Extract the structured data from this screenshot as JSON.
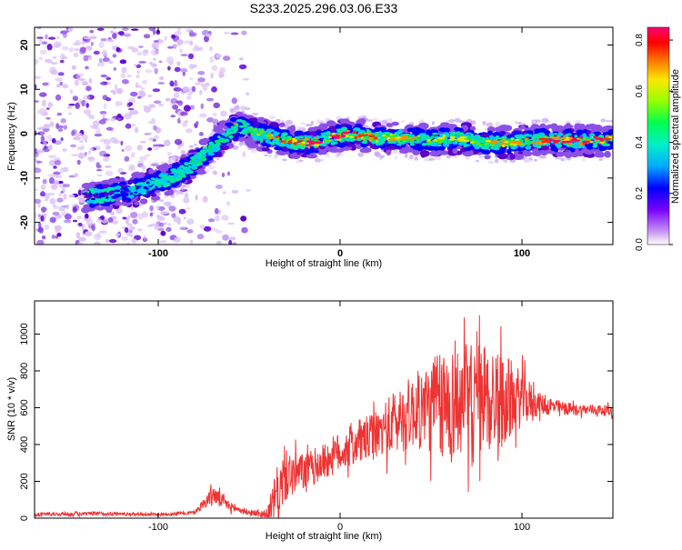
{
  "figure": {
    "title": "S233.2025.296.03.06.E33"
  },
  "chart_data": [
    {
      "type": "heatmap",
      "title": "S233.2025.296.03.06.E33",
      "xlabel": "Height of straight line (km)",
      "ylabel": "Frequency (Hz)",
      "xlim": [
        -168,
        150
      ],
      "ylim": [
        -25,
        24
      ],
      "xticks": [
        -100,
        0,
        100
      ],
      "yticks": [
        -20,
        -10,
        0,
        10,
        20
      ],
      "colorbar": {
        "label": "Normalized spectral amplitude",
        "range": [
          0,
          0.85
        ],
        "ticks": [
          0.0,
          0.2,
          0.4,
          0.6,
          0.8
        ],
        "colors": [
          "#e6c8f5",
          "#8c50e6",
          "#5a00c8",
          "#0000ff",
          "#00c8ff",
          "#00e6aa",
          "#00e650",
          "#64e600",
          "#e6e600",
          "#ff8c00",
          "#ff2800",
          "#ff0064"
        ]
      },
      "ridge": {
        "x": [
          -168,
          -140,
          -130,
          -115,
          -100,
          -88,
          -78,
          -70,
          -62,
          -55,
          -45,
          -35,
          -25,
          -15,
          -5,
          5,
          20,
          35,
          50,
          65,
          80,
          95,
          110,
          130,
          150
        ],
        "y": [
          -13,
          -14,
          -14,
          -13,
          -11,
          -9,
          -6,
          -3,
          0,
          2,
          0,
          -1,
          -2,
          -2,
          -1,
          0,
          -1,
          -1,
          -1.5,
          -1,
          -2,
          -2,
          -1.5,
          -1.5,
          -1.5
        ],
        "peak_amplitude": [
          0.1,
          0.2,
          0.25,
          0.3,
          0.4,
          0.45,
          0.5,
          0.5,
          0.55,
          0.55,
          0.6,
          0.7,
          0.75,
          0.8,
          0.85,
          0.8,
          0.7,
          0.65,
          0.6,
          0.6,
          0.6,
          0.65,
          0.75,
          0.8,
          0.75
        ]
      },
      "noise_region_x": [
        -168,
        -60
      ]
    },
    {
      "type": "line",
      "xlabel": "Height of straight line (km)",
      "ylabel": "SNR (10 * v/v)",
      "xlim": [
        -168,
        150
      ],
      "ylim": [
        0,
        1180
      ],
      "xticks": [
        -100,
        0,
        100
      ],
      "yticks": [
        0,
        200,
        400,
        600,
        800,
        1000
      ],
      "series": [
        {
          "name": "SNR",
          "color": "#ee3333",
          "x": [
            -168,
            -130,
            -100,
            -80,
            -70,
            -60,
            -50,
            -40,
            -35,
            -30,
            -20,
            -10,
            0,
            10,
            20,
            30,
            40,
            50,
            60,
            70,
            80,
            90,
            100,
            110,
            120,
            130,
            140,
            150
          ],
          "y": [
            20,
            25,
            20,
            30,
            130,
            60,
            30,
            20,
            120,
            230,
            250,
            300,
            360,
            410,
            450,
            520,
            580,
            600,
            620,
            640,
            660,
            640,
            650,
            620,
            600,
            590,
            590,
            580
          ],
          "noise_amplitude": [
            10,
            10,
            8,
            10,
            50,
            25,
            12,
            30,
            150,
            140,
            100,
            100,
            110,
            120,
            130,
            180,
            200,
            260,
            300,
            320,
            300,
            260,
            150,
            60,
            40,
            30,
            30,
            30
          ]
        }
      ]
    }
  ]
}
